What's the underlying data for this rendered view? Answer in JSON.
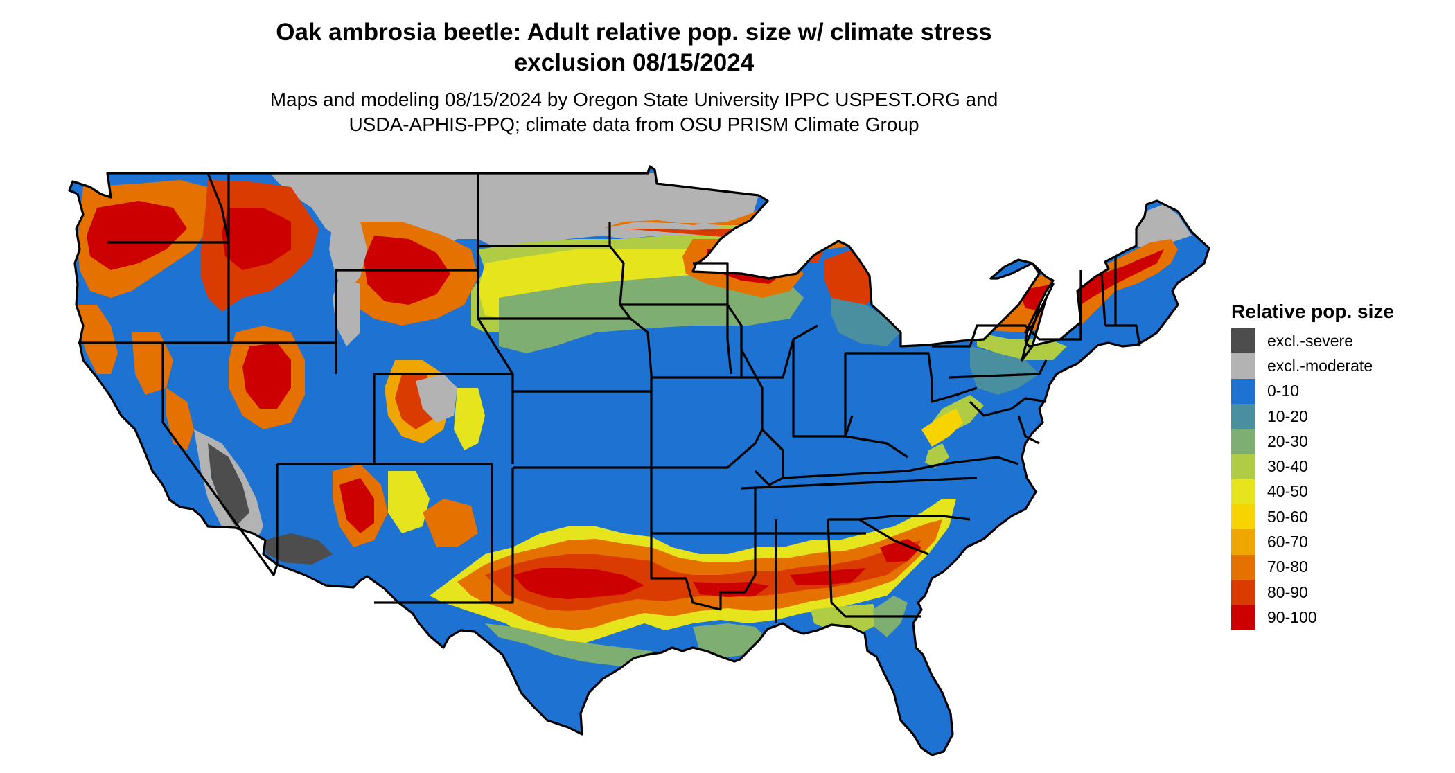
{
  "title_line1": "Oak ambrosia beetle: Adult relative pop. size w/ climate stress",
  "title_line2": "exclusion 08/15/2024",
  "subtitle_line1": "Maps and modeling 08/15/2024 by Oregon State University IPPC USPEST.ORG and",
  "subtitle_line2": "USDA-APHIS-PPQ; climate data from OSU PRISM Climate Group",
  "legend": {
    "title": "Relative pop. size",
    "items": [
      {
        "label": "excl.-severe",
        "color": "#4d4d4d"
      },
      {
        "label": "excl.-moderate",
        "color": "#b3b3b3"
      },
      {
        "label": "0-10",
        "color": "#1e73d2"
      },
      {
        "label": "10-20",
        "color": "#4a8f9f"
      },
      {
        "label": "20-30",
        "color": "#7fae72"
      },
      {
        "label": "30-40",
        "color": "#b0cc45"
      },
      {
        "label": "40-50",
        "color": "#e6e41c"
      },
      {
        "label": "50-60",
        "color": "#f7d400"
      },
      {
        "label": "60-70",
        "color": "#f0a600"
      },
      {
        "label": "70-80",
        "color": "#e57200"
      },
      {
        "label": "80-90",
        "color": "#da3b00"
      },
      {
        "label": "90-100",
        "color": "#cc0000"
      }
    ]
  }
}
